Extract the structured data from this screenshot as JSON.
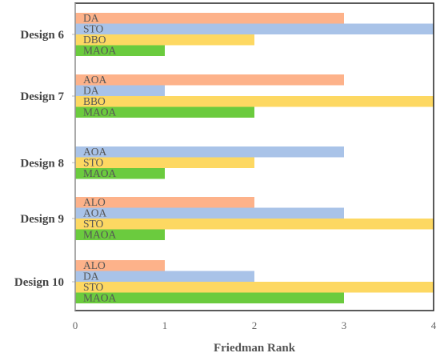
{
  "chart_data": {
    "type": "bar",
    "orientation": "horizontal",
    "xlabel": "Friedman Rank",
    "ylabel": "",
    "xlim": [
      0,
      4
    ],
    "xticks": [
      "0",
      "1",
      "2",
      "3",
      "4"
    ],
    "grid": false,
    "groups": [
      {
        "category": "Design 6",
        "bars": [
          {
            "label": "DA",
            "value": 3,
            "color": "#FDB28A"
          },
          {
            "label": "STO",
            "value": 4,
            "color": "#A9C3E8"
          },
          {
            "label": "DBO",
            "value": 2,
            "color": "#FDD862"
          },
          {
            "label": "MAOA",
            "value": 1,
            "color": "#6BCB3E"
          }
        ]
      },
      {
        "category": "Design 7",
        "bars": [
          {
            "label": "AOA",
            "value": 3,
            "color": "#FDB28A"
          },
          {
            "label": "DA",
            "value": 1,
            "color": "#A9C3E8"
          },
          {
            "label": "BBO",
            "value": 4,
            "color": "#FDD862"
          },
          {
            "label": "MAOA",
            "value": 2,
            "color": "#6BCB3E"
          }
        ]
      },
      {
        "category": "Design 8",
        "bars": [
          {
            "label": "AOA",
            "value": 3,
            "color": "#A9C3E8"
          },
          {
            "label": "STO",
            "value": 2,
            "color": "#FDD862"
          },
          {
            "label": "MAOA",
            "value": 1,
            "color": "#6BCB3E"
          }
        ]
      },
      {
        "category": "Design 9",
        "bars": [
          {
            "label": "ALO",
            "value": 2,
            "color": "#FDB28A"
          },
          {
            "label": "AOA",
            "value": 3,
            "color": "#A9C3E8"
          },
          {
            "label": "STO",
            "value": 4,
            "color": "#FDD862"
          },
          {
            "label": "MAOA",
            "value": 1,
            "color": "#6BCB3E"
          }
        ]
      },
      {
        "category": "Design 10",
        "bars": [
          {
            "label": "ALO",
            "value": 1,
            "color": "#FDB28A"
          },
          {
            "label": "DA",
            "value": 2,
            "color": "#A9C3E8"
          },
          {
            "label": "STO",
            "value": 4,
            "color": "#FDD862"
          },
          {
            "label": "MAOA",
            "value": 3,
            "color": "#6BCB3E"
          }
        ]
      }
    ]
  }
}
